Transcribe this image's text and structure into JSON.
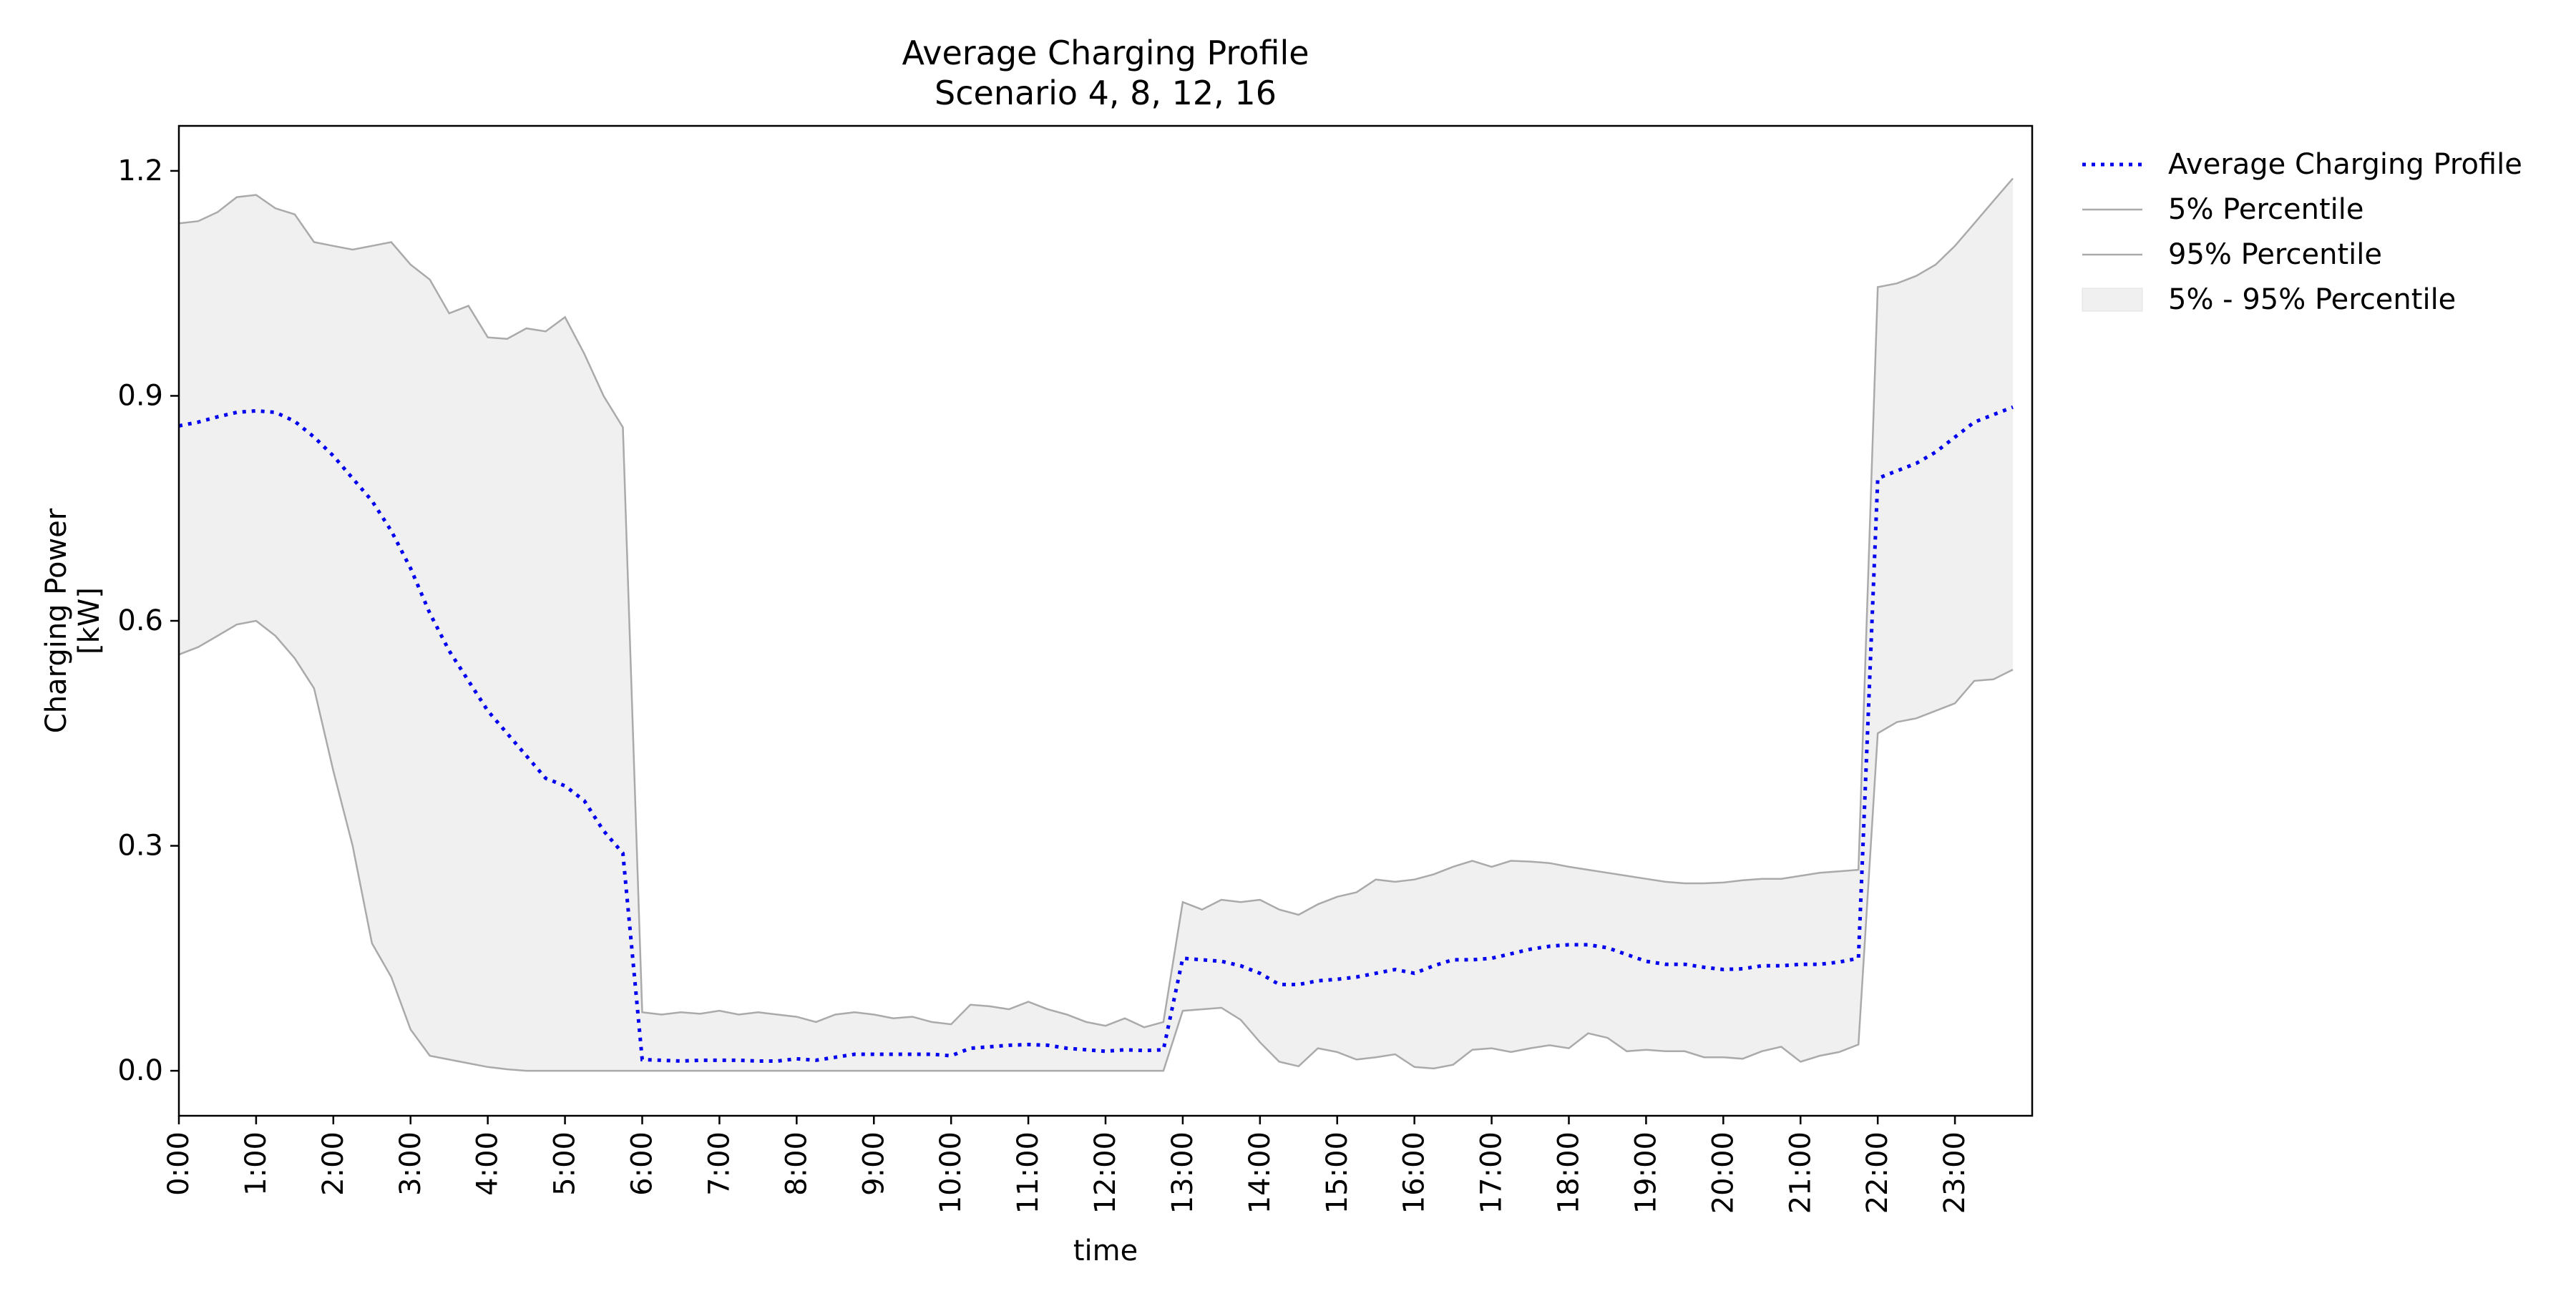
{
  "chart_data": {
    "type": "area",
    "title": "Average Charging Profile",
    "subtitle": "Scenario 4, 8, 12, 16",
    "xlabel": "time",
    "ylabel": "Charging Power\n[kW]",
    "xlim": [
      0,
      24
    ],
    "ylim": [
      -0.06,
      1.26
    ],
    "x_ticks": [
      0,
      1,
      2,
      3,
      4,
      5,
      6,
      7,
      8,
      9,
      10,
      11,
      12,
      13,
      14,
      15,
      16,
      17,
      18,
      19,
      20,
      21,
      22,
      23
    ],
    "x_tick_labels": [
      "0:00",
      "1:00",
      "2:00",
      "3:00",
      "4:00",
      "5:00",
      "6:00",
      "7:00",
      "8:00",
      "9:00",
      "10:00",
      "11:00",
      "12:00",
      "13:00",
      "14:00",
      "15:00",
      "16:00",
      "17:00",
      "18:00",
      "19:00",
      "20:00",
      "21:00",
      "22:00",
      "23:00"
    ],
    "y_ticks": [
      0.0,
      0.3,
      0.6,
      0.9,
      1.2
    ],
    "y_tick_labels": [
      "0.0",
      "0.3",
      "0.6",
      "0.9",
      "1.2"
    ],
    "grid": false,
    "legend_position": "outside right",
    "x": [
      0.0,
      0.25,
      0.5,
      0.75,
      1.0,
      1.25,
      1.5,
      1.75,
      2.0,
      2.25,
      2.5,
      2.75,
      3.0,
      3.25,
      3.5,
      3.75,
      4.0,
      4.25,
      4.5,
      4.75,
      5.0,
      5.25,
      5.5,
      5.75,
      6.0,
      6.25,
      6.5,
      6.75,
      7.0,
      7.25,
      7.5,
      7.75,
      8.0,
      8.25,
      8.5,
      8.75,
      9.0,
      9.25,
      9.5,
      9.75,
      10.0,
      10.25,
      10.5,
      10.75,
      11.0,
      11.25,
      11.5,
      11.75,
      12.0,
      12.25,
      12.5,
      12.75,
      13.0,
      13.25,
      13.5,
      13.75,
      14.0,
      14.25,
      14.5,
      14.75,
      15.0,
      15.25,
      15.5,
      15.75,
      16.0,
      16.25,
      16.5,
      16.75,
      17.0,
      17.25,
      17.5,
      17.75,
      18.0,
      18.25,
      18.5,
      18.75,
      19.0,
      19.25,
      19.5,
      19.75,
      20.0,
      20.25,
      20.5,
      20.75,
      21.0,
      21.25,
      21.5,
      21.75,
      22.0,
      22.25,
      22.5,
      22.75,
      23.0,
      23.25,
      23.5,
      23.75
    ],
    "series": [
      {
        "name": "Average Charging Profile",
        "color": "#0000ee",
        "style": "dotted",
        "values": [
          0.86,
          0.865,
          0.872,
          0.878,
          0.88,
          0.878,
          0.866,
          0.845,
          0.82,
          0.79,
          0.76,
          0.72,
          0.67,
          0.61,
          0.56,
          0.52,
          0.48,
          0.45,
          0.42,
          0.39,
          0.38,
          0.36,
          0.32,
          0.29,
          0.015,
          0.014,
          0.013,
          0.014,
          0.014,
          0.014,
          0.013,
          0.013,
          0.016,
          0.014,
          0.018,
          0.022,
          0.022,
          0.022,
          0.022,
          0.022,
          0.02,
          0.03,
          0.032,
          0.034,
          0.035,
          0.034,
          0.03,
          0.028,
          0.026,
          0.028,
          0.027,
          0.028,
          0.15,
          0.148,
          0.146,
          0.14,
          0.13,
          0.115,
          0.115,
          0.12,
          0.122,
          0.125,
          0.13,
          0.135,
          0.13,
          0.14,
          0.148,
          0.148,
          0.15,
          0.156,
          0.162,
          0.166,
          0.168,
          0.168,
          0.164,
          0.155,
          0.146,
          0.142,
          0.142,
          0.138,
          0.135,
          0.136,
          0.14,
          0.14,
          0.142,
          0.142,
          0.145,
          0.15,
          0.79,
          0.8,
          0.81,
          0.825,
          0.845,
          0.865,
          0.875,
          0.885
        ]
      },
      {
        "name": "5% Percentile",
        "color": "#aaaaaa",
        "style": "solid",
        "values": [
          0.555,
          0.565,
          0.58,
          0.595,
          0.6,
          0.58,
          0.55,
          0.51,
          0.4,
          0.3,
          0.17,
          0.125,
          0.055,
          0.02,
          0.015,
          0.01,
          0.005,
          0.002,
          0.0,
          0.0,
          0.0,
          0.0,
          0.0,
          0.0,
          0.0,
          0.0,
          0.0,
          0.0,
          0.0,
          0.0,
          0.0,
          0.0,
          0.0,
          0.0,
          0.0,
          0.0,
          0.0,
          0.0,
          0.0,
          0.0,
          0.0,
          0.0,
          0.0,
          0.0,
          0.0,
          0.0,
          0.0,
          0.0,
          0.0,
          0.0,
          0.0,
          0.0,
          0.08,
          0.082,
          0.084,
          0.068,
          0.038,
          0.012,
          0.006,
          0.03,
          0.025,
          0.015,
          0.018,
          0.022,
          0.005,
          0.003,
          0.008,
          0.028,
          0.03,
          0.025,
          0.03,
          0.034,
          0.03,
          0.05,
          0.044,
          0.026,
          0.028,
          0.026,
          0.026,
          0.018,
          0.018,
          0.016,
          0.026,
          0.032,
          0.012,
          0.02,
          0.025,
          0.035,
          0.45,
          0.465,
          0.47,
          0.48,
          0.49,
          0.52,
          0.522,
          0.535
        ]
      },
      {
        "name": "95% Percentile",
        "color": "#aaaaaa",
        "style": "solid",
        "values": [
          1.13,
          1.133,
          1.145,
          1.165,
          1.168,
          1.15,
          1.142,
          1.105,
          1.1,
          1.095,
          1.1,
          1.105,
          1.075,
          1.055,
          1.01,
          1.02,
          0.978,
          0.976,
          0.99,
          0.986,
          1.005,
          0.956,
          0.9,
          0.858,
          0.078,
          0.075,
          0.078,
          0.076,
          0.08,
          0.075,
          0.078,
          0.075,
          0.072,
          0.065,
          0.075,
          0.078,
          0.075,
          0.07,
          0.072,
          0.065,
          0.062,
          0.088,
          0.086,
          0.082,
          0.092,
          0.082,
          0.075,
          0.065,
          0.06,
          0.07,
          0.058,
          0.065,
          0.225,
          0.215,
          0.228,
          0.225,
          0.228,
          0.215,
          0.208,
          0.222,
          0.232,
          0.238,
          0.255,
          0.252,
          0.255,
          0.262,
          0.272,
          0.28,
          0.272,
          0.28,
          0.279,
          0.277,
          0.272,
          0.268,
          0.264,
          0.26,
          0.256,
          0.252,
          0.25,
          0.25,
          0.251,
          0.254,
          0.256,
          0.256,
          0.26,
          0.264,
          0.266,
          0.268,
          1.045,
          1.05,
          1.06,
          1.075,
          1.1,
          1.13,
          1.16,
          1.19
        ]
      }
    ],
    "band": {
      "name": "5% - 95% Percentile",
      "color": "#f0f0f0",
      "lower_series": "5% Percentile",
      "upper_series": "95% Percentile"
    }
  }
}
